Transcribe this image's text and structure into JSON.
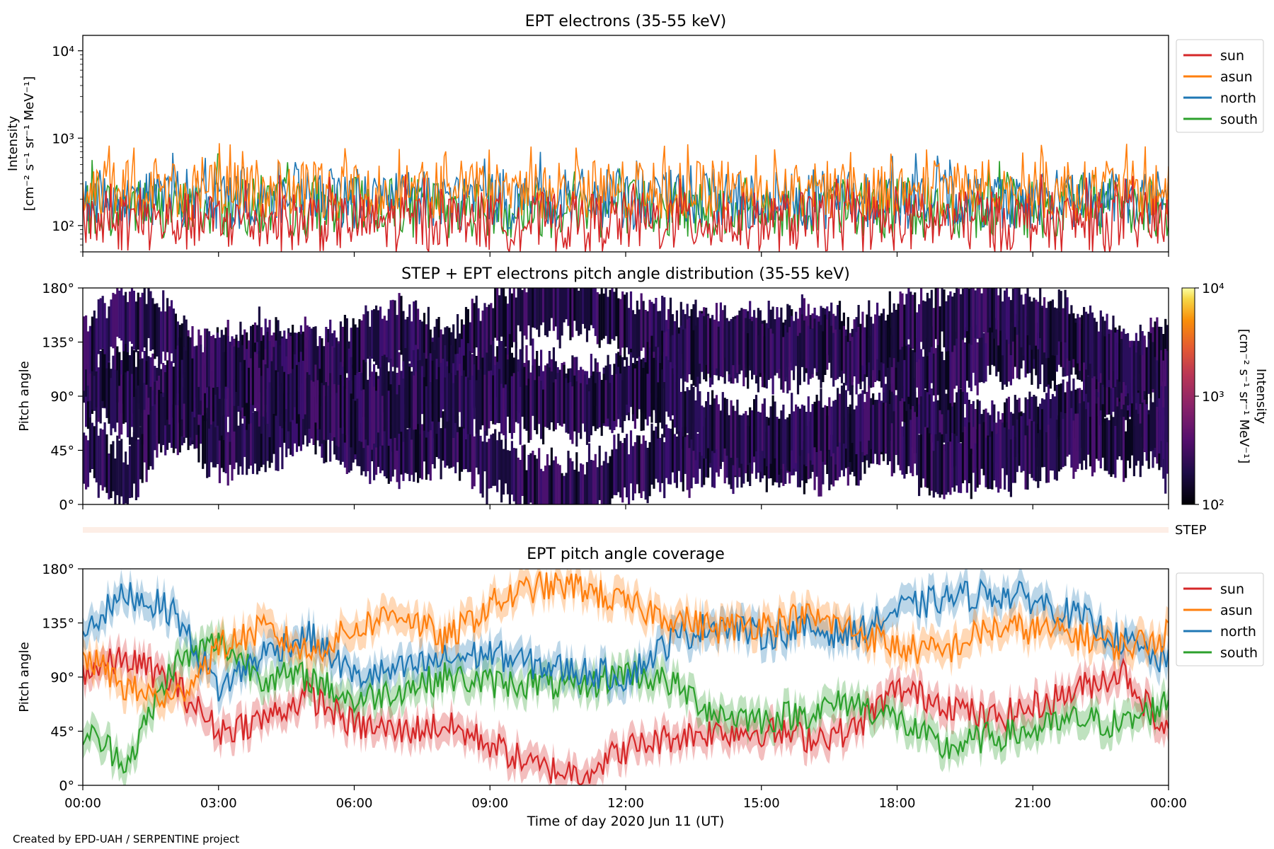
{
  "figure": {
    "footer": "Created by EPD-UAH / SERPENTINE project",
    "xlabel": "Time of day 2020 Jun 11 (UT)",
    "xticks": [
      "00:00",
      "03:00",
      "06:00",
      "09:00",
      "12:00",
      "15:00",
      "18:00",
      "21:00",
      "00:00"
    ]
  },
  "colors": {
    "sun": "#d62728",
    "asun": "#ff7f0e",
    "north": "#1f77b4",
    "south": "#2ca02c",
    "pad": "#2a0f5c"
  },
  "chart_data": [
    {
      "type": "line",
      "title": "EPT electrons (35-55 keV)",
      "ylabel_line1": "Intensity",
      "ylabel_line2": "[cm⁻² s⁻¹ sr⁻¹ MeV⁻¹]",
      "yscale": "log",
      "ylim": [
        50,
        15000
      ],
      "yticks": [
        {
          "value": 100,
          "label": "10²"
        },
        {
          "value": 1000,
          "label": "10³"
        },
        {
          "value": 10000,
          "label": "10⁴"
        }
      ],
      "xlim_hours": [
        0,
        24
      ],
      "legend": {
        "placement": "outside-right-top",
        "entries": [
          "sun",
          "asun",
          "north",
          "south"
        ]
      },
      "series_typical_level": {
        "sun": 110,
        "asun": 250,
        "north": 200,
        "south": 160
      },
      "peak_values": [
        {
          "series": "asun",
          "x_hours": 10.9,
          "y": 780
        },
        {
          "series": "north",
          "x_hours": 2.0,
          "y": 680
        },
        {
          "series": "south",
          "x_hours": 3.0,
          "y": 660
        }
      ]
    },
    {
      "type": "heatmap",
      "title": "STEP + EPT electrons pitch angle distribution (35-55 keV)",
      "ylabel": "Pitch angle",
      "ylim": [
        0,
        180
      ],
      "yticks": [
        "0°",
        "45°",
        "90°",
        "135°",
        "180°"
      ],
      "colorbar": {
        "label_line1": "Intensity",
        "label_line2": "[cm⁻² s⁻¹ sr⁻¹ MeV⁻¹]",
        "scale": "log",
        "range": [
          100,
          10000
        ],
        "ticks": [
          "10²",
          "10³",
          "10⁴"
        ],
        "colormap": "inferno"
      },
      "step_label": "STEP"
    },
    {
      "type": "line",
      "title": "EPT pitch angle coverage",
      "ylabel": "Pitch angle",
      "ylim": [
        0,
        180
      ],
      "yticks": [
        "0°",
        "45°",
        "90°",
        "135°",
        "180°"
      ],
      "xlim_hours": [
        0,
        24
      ],
      "legend": {
        "placement": "outside-right-top",
        "entries": [
          "sun",
          "asun",
          "north",
          "south"
        ]
      },
      "shaded_band_halfwidth_deg": 12,
      "series": [
        {
          "name": "sun",
          "x_hours": [
            0,
            1,
            2,
            3,
            4,
            5,
            6,
            7,
            8,
            9,
            10,
            11,
            12,
            13,
            14,
            15,
            16,
            17,
            18,
            19,
            20,
            21,
            22,
            23,
            24
          ],
          "values": [
            95,
            105,
            85,
            45,
            55,
            75,
            50,
            45,
            50,
            35,
            15,
            10,
            30,
            40,
            45,
            45,
            40,
            45,
            80,
            70,
            55,
            65,
            80,
            95,
            40
          ]
        },
        {
          "name": "asun",
          "x_hours": [
            0,
            1,
            2,
            3,
            4,
            5,
            6,
            7,
            8,
            9,
            10,
            11,
            12,
            13,
            14,
            15,
            16,
            17,
            18,
            19,
            20,
            21,
            22,
            23,
            24
          ],
          "values": [
            110,
            80,
            70,
            115,
            130,
            110,
            130,
            145,
            120,
            150,
            165,
            165,
            150,
            140,
            130,
            135,
            140,
            130,
            115,
            110,
            130,
            130,
            125,
            115,
            125
          ]
        },
        {
          "name": "north",
          "x_hours": [
            0,
            1,
            2,
            3,
            4,
            5,
            6,
            7,
            8,
            9,
            10,
            11,
            12,
            13,
            14,
            15,
            16,
            17,
            18,
            19,
            20,
            21,
            22,
            23,
            24
          ],
          "values": [
            130,
            160,
            145,
            80,
            110,
            125,
            90,
            95,
            105,
            110,
            100,
            95,
            90,
            120,
            135,
            125,
            130,
            125,
            145,
            155,
            160,
            155,
            140,
            120,
            100
          ]
        },
        {
          "name": "south",
          "x_hours": [
            0,
            1,
            2,
            3,
            4,
            5,
            6,
            7,
            8,
            9,
            10,
            11,
            12,
            13,
            14,
            15,
            16,
            17,
            18,
            19,
            20,
            21,
            22,
            23,
            24
          ],
          "values": [
            45,
            20,
            100,
            120,
            90,
            90,
            70,
            80,
            90,
            85,
            85,
            80,
            95,
            85,
            60,
            55,
            60,
            70,
            55,
            30,
            40,
            45,
            55,
            50,
            70
          ]
        }
      ]
    }
  ]
}
